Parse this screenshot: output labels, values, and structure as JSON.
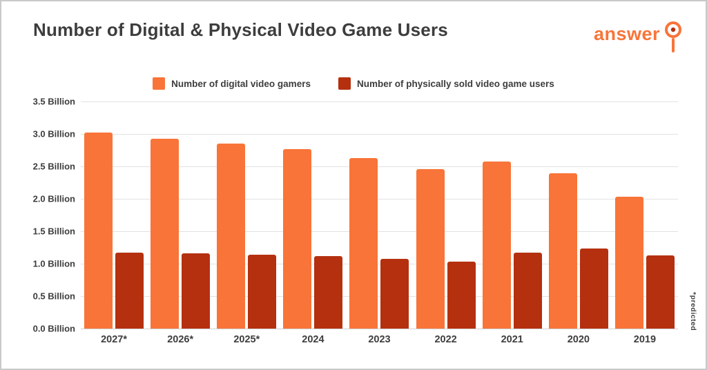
{
  "header": {
    "title": "Number of Digital & Physical Video Game Users",
    "logo_text": "answer"
  },
  "legend": [
    {
      "label": "Number of digital video gamers",
      "color": "#f97438"
    },
    {
      "label": "Number of physically sold video game users",
      "color": "#b5300f"
    }
  ],
  "annotation": "*predicted",
  "colors": {
    "digital": "#f97438",
    "physical": "#b5300f",
    "text": "#3d3d3d"
  },
  "chart_data": {
    "type": "bar",
    "categories": [
      "2027*",
      "2026*",
      "2025*",
      "2024",
      "2023",
      "2022",
      "2021",
      "2020",
      "2019"
    ],
    "series": [
      {
        "name": "Number of digital video gamers",
        "color": "#f97438",
        "values": [
          3.02,
          2.93,
          2.85,
          2.77,
          2.63,
          2.46,
          2.57,
          2.39,
          2.03
        ]
      },
      {
        "name": "Number of physically sold video game users",
        "color": "#b5300f",
        "values": [
          1.17,
          1.16,
          1.14,
          1.12,
          1.07,
          1.03,
          1.17,
          1.23,
          1.13
        ]
      }
    ],
    "title": "Number of Digital & Physical Video Game Users",
    "xlabel": "",
    "ylabel": "",
    "ylim": [
      0,
      3.5
    ],
    "yticks": [
      3.5,
      3.0,
      2.5,
      2.0,
      1.5,
      1.0,
      0.5,
      0.0
    ],
    "ytick_labels": [
      "3.5 Billion",
      "3.0 Billion",
      "2.5 Billion",
      "2.0 Billion",
      "1.5 Billion",
      "1.0 Billion",
      "0.5 Billion",
      "0.0 Billion"
    ],
    "grid": true,
    "legend_position": "top",
    "annotation": "*predicted"
  }
}
